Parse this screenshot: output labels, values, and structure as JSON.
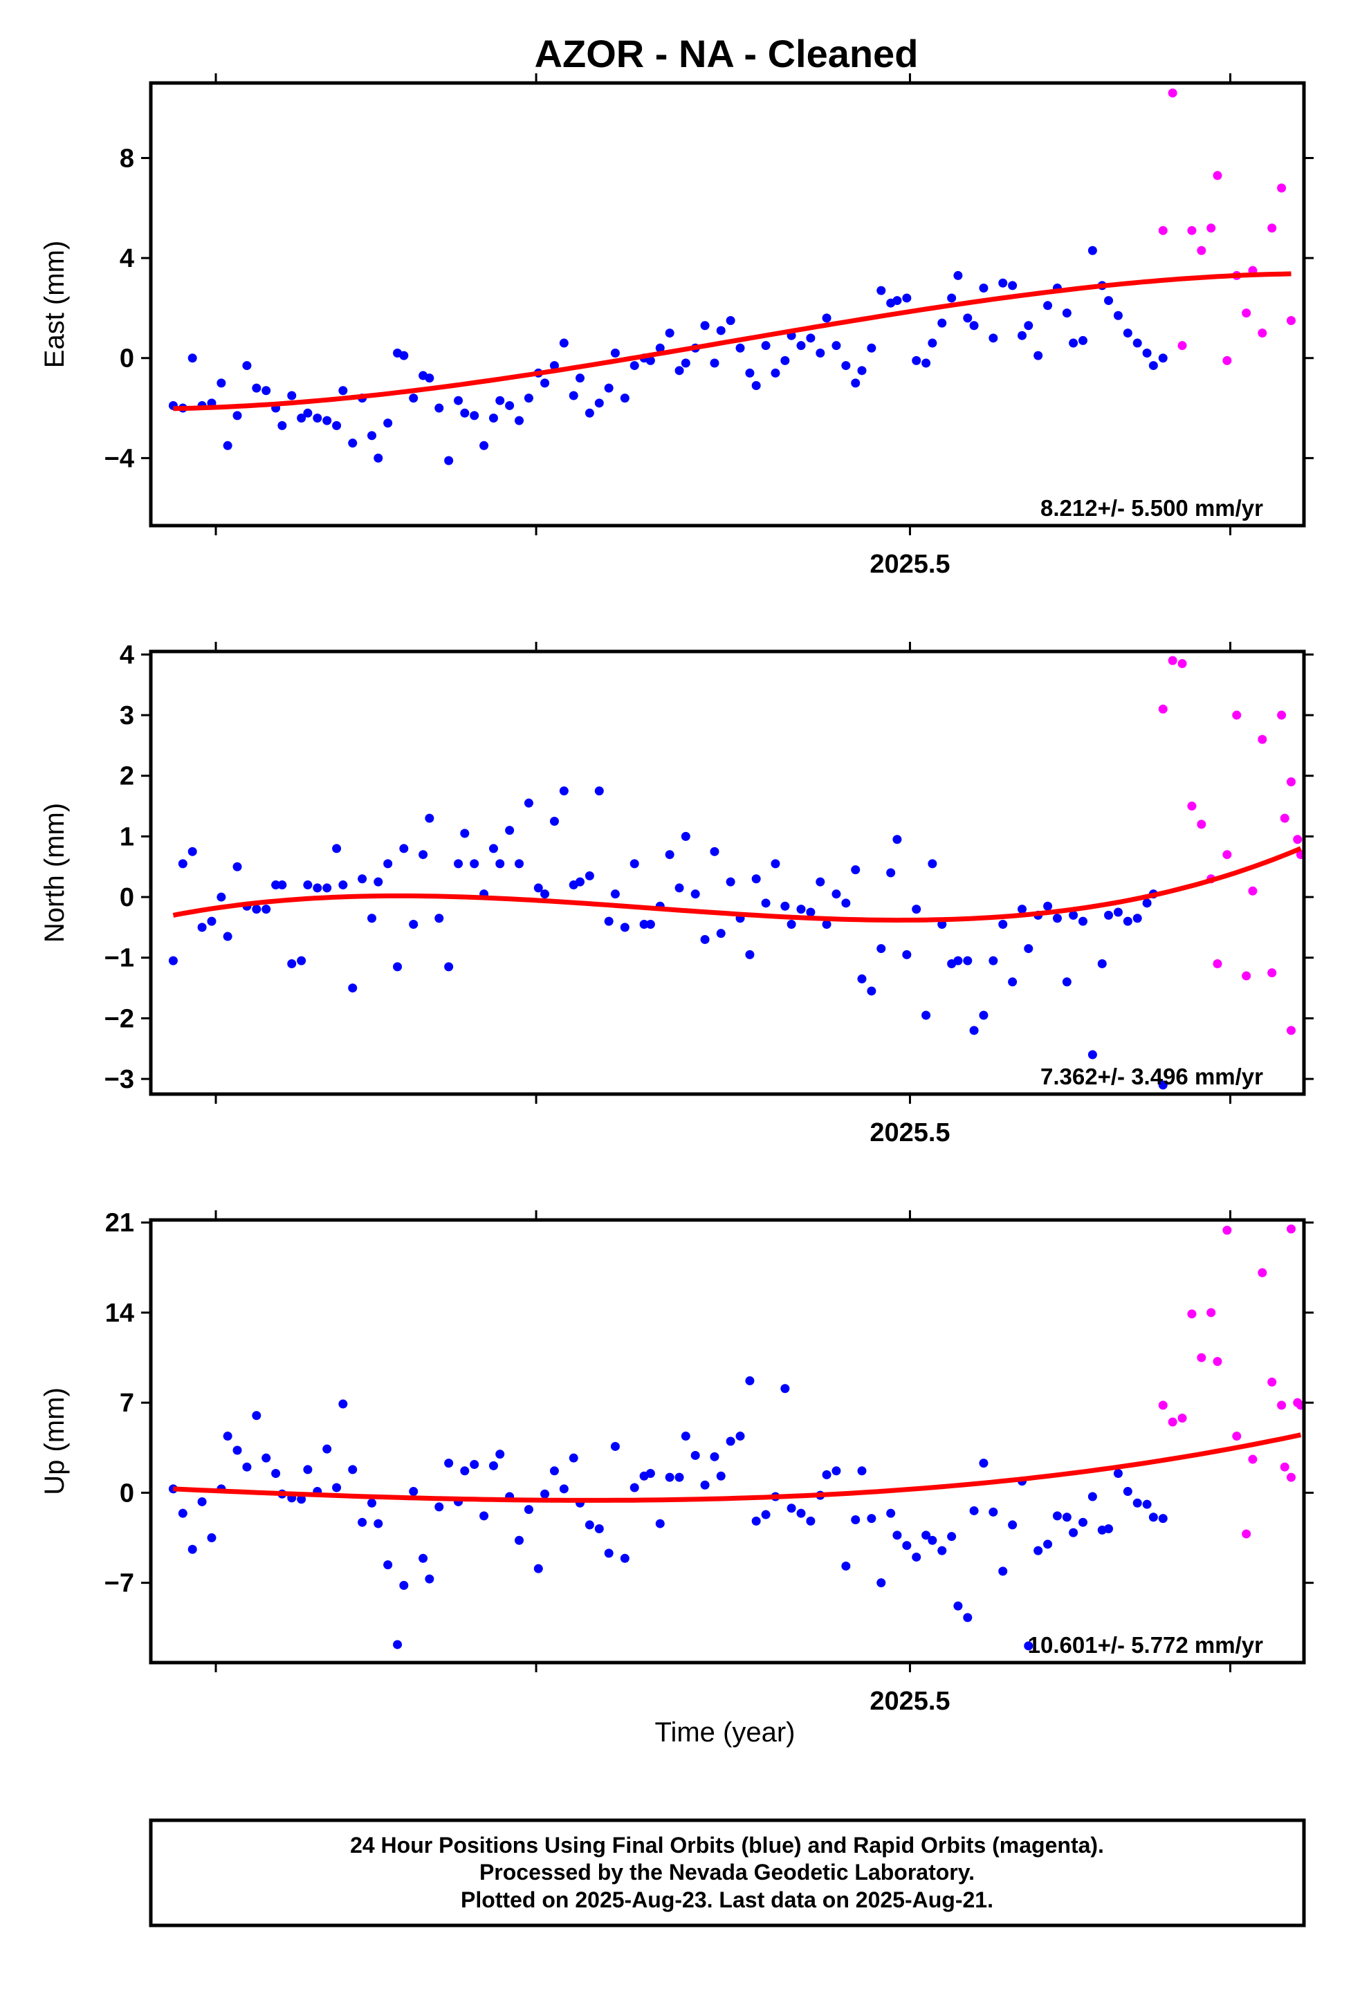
{
  "title": "AZOR  - NA - Cleaned",
  "xlabel": "Time (year)",
  "colors": {
    "final": "#0000ff",
    "rapid": "#ff00ff",
    "trend": "#ff0000",
    "frame": "#000000"
  },
  "footer": {
    "line1": "24 Hour Positions Using Final Orbits (blue) and Rapid Orbits (magenta).",
    "line2": "Processed by the Nevada Geodetic Laboratory.",
    "line3": "Plotted on 2025-Aug-23. Last data on 2025-Aug-21."
  },
  "chart_data": [
    {
      "type": "scatter",
      "ylabel": "East (mm)",
      "rate_label": "8.212+/- 5.500 mm/yr",
      "xlim": [
        2025.263,
        2025.623
      ],
      "ylim": [
        -6.7,
        11
      ],
      "yticks": [
        -4,
        0,
        4,
        8
      ],
      "ytick_labels": [
        "−4",
        "0",
        "4",
        "8"
      ],
      "xticks_labeled": [
        2025.5
      ],
      "xtick_labels": [
        "2025.5"
      ],
      "xticks_minor": [
        2025.2833,
        2025.3833,
        2025.5,
        2025.6
      ],
      "final_x": [
        2025.27,
        2025.273,
        2025.276,
        2025.279,
        2025.282,
        2025.285,
        2025.287,
        2025.29,
        2025.293,
        2025.296,
        2025.299,
        2025.302,
        2025.304,
        2025.307,
        2025.31,
        2025.312,
        2025.315,
        2025.318,
        2025.321,
        2025.323,
        2025.326,
        2025.329,
        2025.332,
        2025.334,
        2025.337,
        2025.34,
        2025.342,
        2025.345,
        2025.348,
        2025.35,
        2025.353,
        2025.356,
        2025.359,
        2025.361,
        2025.364,
        2025.367,
        2025.37,
        2025.372,
        2025.375,
        2025.378,
        2025.381,
        2025.384,
        2025.386,
        2025.389,
        2025.392,
        2025.395,
        2025.397,
        2025.4,
        2025.403,
        2025.406,
        2025.408,
        2025.411,
        2025.414,
        2025.417,
        2025.419,
        2025.422,
        2025.425,
        2025.428,
        2025.43,
        2025.433,
        2025.436,
        2025.439,
        2025.441,
        2025.444,
        2025.447,
        2025.45,
        2025.452,
        2025.455,
        2025.458,
        2025.461,
        2025.463,
        2025.466,
        2025.469,
        2025.472,
        2025.474,
        2025.477,
        2025.48,
        2025.483,
        2025.485,
        2025.488,
        2025.491,
        2025.494,
        2025.496,
        2025.499,
        2025.502,
        2025.505,
        2025.507,
        2025.51,
        2025.513,
        2025.515,
        2025.518,
        2025.52,
        2025.523,
        2025.526,
        2025.529,
        2025.532,
        2025.535,
        2025.537,
        2025.54,
        2025.543,
        2025.546,
        2025.549,
        2025.551,
        2025.554,
        2025.557,
        2025.56,
        2025.562,
        2025.565,
        2025.568,
        2025.571,
        2025.574,
        2025.576,
        2025.579
      ],
      "final_y": [
        -1.9,
        -2.0,
        0.0,
        -1.9,
        -1.8,
        -1.0,
        -3.5,
        -2.3,
        -0.3,
        -1.2,
        -1.3,
        -2.0,
        -2.7,
        -1.5,
        -2.4,
        -2.2,
        -2.4,
        -2.5,
        -2.7,
        -1.3,
        -3.4,
        -1.6,
        -3.1,
        -4.0,
        -2.6,
        0.2,
        0.1,
        -1.6,
        -0.7,
        -0.8,
        -2.0,
        -4.1,
        -1.7,
        -2.2,
        -2.3,
        -3.5,
        -2.4,
        -1.7,
        -1.9,
        -2.5,
        -1.6,
        -0.6,
        -1.0,
        -0.3,
        0.6,
        -1.5,
        -0.8,
        -2.2,
        -1.8,
        -1.2,
        0.2,
        -1.6,
        -0.3,
        0.0,
        -0.1,
        0.4,
        1.0,
        -0.5,
        -0.2,
        0.4,
        1.3,
        -0.2,
        1.1,
        1.5,
        0.4,
        -0.6,
        -1.1,
        0.5,
        -0.6,
        -0.1,
        0.9,
        0.5,
        0.8,
        0.2,
        1.6,
        0.5,
        -0.3,
        -1.0,
        -0.5,
        0.4,
        2.7,
        2.2,
        2.3,
        2.4,
        -0.1,
        -0.2,
        0.6,
        1.4,
        2.4,
        3.3,
        1.6,
        1.3,
        2.8,
        0.8,
        3.0,
        2.9,
        0.9,
        1.3,
        0.1,
        2.1,
        2.8,
        1.8,
        0.6,
        0.7,
        4.3,
        2.9,
        2.3,
        1.7,
        1.0,
        0.6,
        0.2,
        -0.3,
        0.0
      ],
      "rapid_x": [
        2025.579,
        2025.582,
        2025.585,
        2025.588,
        2025.591,
        2025.594,
        2025.596,
        2025.599,
        2025.602,
        2025.605,
        2025.607,
        2025.61,
        2025.613,
        2025.616,
        2025.619
      ],
      "rapid_y": [
        5.1,
        10.6,
        0.5,
        5.1,
        4.3,
        5.2,
        7.3,
        -0.1,
        3.3,
        1.8,
        3.5,
        1.0,
        5.2,
        6.8,
        1.5
      ],
      "trend_coeffs": [
        2025.27,
        2025.619,
        -2.02,
        3.37
      ]
    },
    {
      "type": "scatter",
      "ylabel": "North (mm)",
      "rate_label": "7.362+/- 3.496 mm/yr",
      "xlim": [
        2025.263,
        2025.623
      ],
      "ylim": [
        -3.25,
        4.05
      ],
      "yticks": [
        -3,
        -2,
        -1,
        0,
        1,
        2,
        3,
        4
      ],
      "ytick_labels": [
        "−3",
        "−2",
        "−1",
        "0",
        "1",
        "2",
        "3",
        "4"
      ],
      "xticks_labeled": [
        2025.5
      ],
      "xtick_labels": [
        "2025.5"
      ],
      "xticks_minor": [
        2025.2833,
        2025.3833,
        2025.5,
        2025.6
      ],
      "final_x": [
        2025.27,
        2025.273,
        2025.276,
        2025.279,
        2025.282,
        2025.285,
        2025.287,
        2025.29,
        2025.293,
        2025.296,
        2025.299,
        2025.302,
        2025.304,
        2025.307,
        2025.31,
        2025.312,
        2025.315,
        2025.318,
        2025.321,
        2025.323,
        2025.326,
        2025.329,
        2025.332,
        2025.334,
        2025.337,
        2025.34,
        2025.342,
        2025.345,
        2025.348,
        2025.35,
        2025.353,
        2025.356,
        2025.359,
        2025.361,
        2025.364,
        2025.367,
        2025.37,
        2025.372,
        2025.375,
        2025.378,
        2025.381,
        2025.384,
        2025.386,
        2025.389,
        2025.392,
        2025.395,
        2025.397,
        2025.4,
        2025.403,
        2025.406,
        2025.408,
        2025.411,
        2025.414,
        2025.417,
        2025.419,
        2025.422,
        2025.425,
        2025.428,
        2025.43,
        2025.433,
        2025.436,
        2025.439,
        2025.441,
        2025.444,
        2025.447,
        2025.45,
        2025.452,
        2025.455,
        2025.458,
        2025.461,
        2025.463,
        2025.466,
        2025.469,
        2025.472,
        2025.474,
        2025.477,
        2025.48,
        2025.483,
        2025.485,
        2025.488,
        2025.491,
        2025.494,
        2025.496,
        2025.499,
        2025.502,
        2025.505,
        2025.507,
        2025.51,
        2025.513,
        2025.515,
        2025.518,
        2025.52,
        2025.523,
        2025.526,
        2025.529,
        2025.532,
        2025.535,
        2025.537,
        2025.54,
        2025.543,
        2025.546,
        2025.549,
        2025.551,
        2025.554,
        2025.557,
        2025.56,
        2025.562,
        2025.565,
        2025.568,
        2025.571,
        2025.574,
        2025.576,
        2025.579
      ],
      "final_y": [
        -1.05,
        0.55,
        0.75,
        -0.5,
        -0.4,
        0.0,
        -0.65,
        0.5,
        -0.15,
        -0.2,
        -0.2,
        0.2,
        0.2,
        -1.1,
        -1.05,
        0.2,
        0.15,
        0.15,
        0.8,
        0.2,
        -1.5,
        0.3,
        -0.35,
        0.25,
        0.55,
        -1.15,
        0.8,
        -0.45,
        0.7,
        1.3,
        -0.35,
        -1.15,
        0.55,
        1.05,
        0.55,
        0.05,
        0.8,
        0.55,
        1.1,
        0.55,
        1.55,
        0.15,
        0.05,
        1.25,
        1.75,
        0.2,
        0.25,
        0.35,
        1.75,
        -0.4,
        0.05,
        -0.5,
        0.55,
        -0.45,
        -0.45,
        -0.15,
        0.7,
        0.15,
        1.0,
        0.05,
        -0.7,
        0.75,
        -0.6,
        0.25,
        -0.35,
        -0.95,
        0.3,
        -0.1,
        0.55,
        -0.15,
        -0.45,
        -0.2,
        -0.25,
        0.25,
        -0.45,
        0.05,
        -0.1,
        0.45,
        -1.35,
        -1.55,
        -0.85,
        0.4,
        0.95,
        -0.95,
        -0.2,
        -1.95,
        0.55,
        -0.45,
        -1.1,
        -1.05,
        -1.05,
        -2.2,
        -1.95,
        -1.05,
        -0.45,
        -1.4,
        -0.2,
        -0.85,
        -0.3,
        -0.15,
        -0.35,
        -1.4,
        -0.3,
        -0.4,
        -2.6,
        -1.1,
        -0.3,
        -0.25,
        -0.4,
        -0.35,
        -0.1,
        0.05,
        -3.1
      ],
      "rapid_x": [
        2025.579,
        2025.582,
        2025.585,
        2025.588,
        2025.591,
        2025.594,
        2025.596,
        2025.599,
        2025.602,
        2025.605,
        2025.607,
        2025.61,
        2025.613,
        2025.616,
        2025.619
      ],
      "rapid_y": [
        3.1,
        3.9,
        3.85,
        1.5,
        1.2,
        0.3,
        -1.1,
        0.7,
        3.0,
        -1.3,
        0.1,
        2.6,
        -1.25,
        3.0,
        -2.2
      ],
      "rapid_extra_x": [
        2025.617,
        2025.619,
        2025.621,
        2025.622
      ],
      "rapid_extra_y": [
        1.3,
        1.9,
        0.95,
        0.7
      ],
      "trend_coeffs": [
        2025.27,
        2025.622,
        -0.3,
        0.8
      ]
    },
    {
      "type": "scatter",
      "ylabel": "Up (mm)",
      "rate_label": "10.601+/- 5.772 mm/yr",
      "xlim": [
        2025.263,
        2025.623
      ],
      "ylim": [
        -13.2,
        21.2
      ],
      "yticks": [
        -7,
        0,
        7,
        14,
        21
      ],
      "ytick_labels": [
        "−7",
        "0",
        "7",
        "14",
        "21"
      ],
      "xticks_labeled": [
        2025.5
      ],
      "xtick_labels": [
        "2025.5"
      ],
      "xticks_minor": [
        2025.2833,
        2025.3833,
        2025.5,
        2025.6
      ],
      "final_x": [
        2025.27,
        2025.273,
        2025.276,
        2025.279,
        2025.282,
        2025.285,
        2025.287,
        2025.29,
        2025.293,
        2025.296,
        2025.299,
        2025.302,
        2025.304,
        2025.307,
        2025.31,
        2025.312,
        2025.315,
        2025.318,
        2025.321,
        2025.323,
        2025.326,
        2025.329,
        2025.332,
        2025.334,
        2025.337,
        2025.34,
        2025.342,
        2025.345,
        2025.348,
        2025.35,
        2025.353,
        2025.356,
        2025.359,
        2025.361,
        2025.364,
        2025.367,
        2025.37,
        2025.372,
        2025.375,
        2025.378,
        2025.381,
        2025.384,
        2025.386,
        2025.389,
        2025.392,
        2025.395,
        2025.397,
        2025.4,
        2025.403,
        2025.406,
        2025.408,
        2025.411,
        2025.414,
        2025.417,
        2025.419,
        2025.422,
        2025.425,
        2025.428,
        2025.43,
        2025.433,
        2025.436,
        2025.439,
        2025.441,
        2025.444,
        2025.447,
        2025.45,
        2025.452,
        2025.455,
        2025.458,
        2025.461,
        2025.463,
        2025.466,
        2025.469,
        2025.472,
        2025.474,
        2025.477,
        2025.48,
        2025.483,
        2025.485,
        2025.488,
        2025.491,
        2025.494,
        2025.496,
        2025.499,
        2025.502,
        2025.505,
        2025.507,
        2025.51,
        2025.513,
        2025.515,
        2025.518,
        2025.52,
        2025.523,
        2025.526,
        2025.529,
        2025.532,
        2025.535,
        2025.537,
        2025.54,
        2025.543,
        2025.546,
        2025.549,
        2025.551,
        2025.554,
        2025.557,
        2025.56,
        2025.562,
        2025.565,
        2025.568,
        2025.571,
        2025.574,
        2025.576,
        2025.579
      ],
      "final_y": [
        0.3,
        -1.6,
        -4.4,
        -0.7,
        -3.5,
        0.3,
        4.4,
        3.3,
        2.0,
        6.0,
        2.7,
        1.5,
        -0.1,
        -0.4,
        -0.5,
        1.8,
        0.1,
        3.4,
        0.4,
        6.9,
        1.8,
        -2.3,
        -0.8,
        -2.4,
        -5.6,
        -11.8,
        -7.2,
        0.1,
        -5.1,
        -6.7,
        -1.1,
        2.3,
        -0.7,
        1.7,
        2.2,
        -1.8,
        2.1,
        3.0,
        -0.3,
        -3.7,
        -1.3,
        -5.9,
        -0.1,
        1.7,
        0.3,
        2.7,
        -0.8,
        -2.5,
        -2.8,
        -4.7,
        3.6,
        -5.1,
        0.4,
        1.3,
        1.5,
        -2.4,
        1.2,
        1.2,
        4.4,
        2.9,
        0.6,
        2.8,
        1.3,
        4.0,
        4.4,
        8.7,
        -2.2,
        -1.7,
        -0.3,
        8.1,
        -1.2,
        -1.6,
        -2.2,
        -0.2,
        1.4,
        1.7,
        -5.7,
        -2.1,
        1.7,
        -2.0,
        -7.0,
        -1.6,
        -3.3,
        -4.1,
        -5.0,
        -3.3,
        -3.7,
        -4.5,
        -3.4,
        -8.8,
        -9.7,
        -1.4,
        2.3,
        -1.5,
        -6.1,
        -2.5,
        0.9,
        -11.9,
        -4.5,
        -4.0,
        -1.8,
        -1.9,
        -3.1,
        -2.3,
        -0.3,
        -2.9,
        -2.8,
        1.5,
        0.1,
        -0.8,
        -0.9,
        -1.9,
        -2.0
      ],
      "rapid_x": [
        2025.579,
        2025.582,
        2025.585,
        2025.588,
        2025.591,
        2025.594,
        2025.596,
        2025.599,
        2025.602,
        2025.605,
        2025.607,
        2025.61,
        2025.613,
        2025.616,
        2025.619
      ],
      "rapid_y": [
        6.8,
        5.5,
        5.8,
        13.9,
        10.5,
        14.0,
        10.2,
        20.4,
        4.4,
        -3.2,
        2.6,
        17.1,
        8.6,
        6.8,
        20.5
      ],
      "rapid_extra_x": [
        2025.617,
        2025.619,
        2025.621,
        2025.622
      ],
      "rapid_extra_y": [
        2.0,
        1.2,
        7.0,
        6.8
      ],
      "trend_coeffs": [
        2025.27,
        2025.622,
        0.3,
        4.5
      ]
    }
  ]
}
